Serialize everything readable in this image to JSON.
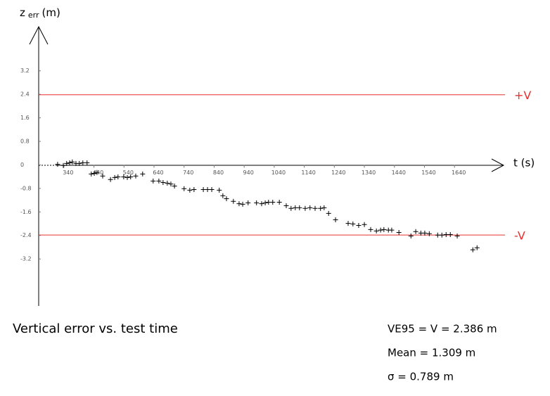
{
  "chart_data": {
    "type": "scatter",
    "marker": "+",
    "color": "#000000",
    "y_label": {
      "main": "z",
      "subscript": "err",
      "unit": "(m)"
    },
    "x_label": "t (s)",
    "xlim": [
      242,
      1787
    ],
    "ylim": [
      -4.8,
      4.7
    ],
    "xticks": [
      340,
      440,
      540,
      640,
      740,
      840,
      940,
      1040,
      1140,
      1240,
      1340,
      1440,
      1540,
      1640
    ],
    "yticks": [
      3.2,
      2.4,
      1.6,
      0.8,
      0,
      -0.8,
      -1.6,
      -2.4,
      -3.2
    ],
    "reference_lines": [
      {
        "value": 2.386,
        "label": "+V",
        "color": "#e8312f"
      },
      {
        "value": -2.386,
        "label": "-V",
        "color": "#e8312f"
      }
    ],
    "x": [
      305,
      324,
      335,
      345,
      354,
      366,
      377,
      389,
      403,
      417,
      427,
      436,
      455,
      481,
      495,
      506,
      525,
      537,
      548,
      565,
      588,
      623,
      642,
      656,
      670,
      682,
      694,
      726,
      745,
      759,
      790,
      804,
      818,
      843,
      855,
      867,
      890,
      909,
      921,
      939,
      967,
      984,
      996,
      1007,
      1021,
      1043,
      1066,
      1082,
      1096,
      1110,
      1129,
      1145,
      1162,
      1180,
      1192,
      1207,
      1230,
      1272,
      1288,
      1307,
      1326,
      1347,
      1366,
      1380,
      1391,
      1406,
      1417,
      1441,
      1481,
      1497,
      1514,
      1527,
      1542,
      1570,
      1584,
      1598,
      1612,
      1635,
      1687,
      1701
    ],
    "values": [
      0.02,
      -0.02,
      0.05,
      0.07,
      0.1,
      0.05,
      0.05,
      0.07,
      0.07,
      -0.31,
      -0.29,
      -0.26,
      -0.38,
      -0.5,
      -0.43,
      -0.41,
      -0.41,
      -0.43,
      -0.41,
      -0.38,
      -0.31,
      -0.55,
      -0.55,
      -0.6,
      -0.62,
      -0.65,
      -0.72,
      -0.81,
      -0.86,
      -0.84,
      -0.84,
      -0.84,
      -0.84,
      -0.86,
      -1.05,
      -1.15,
      -1.24,
      -1.32,
      -1.34,
      -1.29,
      -1.29,
      -1.32,
      -1.29,
      -1.27,
      -1.27,
      -1.27,
      -1.39,
      -1.48,
      -1.46,
      -1.46,
      -1.48,
      -1.46,
      -1.48,
      -1.48,
      -1.46,
      -1.65,
      -1.87,
      -1.99,
      -2.01,
      -2.06,
      -2.03,
      -2.2,
      -2.25,
      -2.22,
      -2.2,
      -2.22,
      -2.22,
      -2.3,
      -2.42,
      -2.27,
      -2.32,
      -2.32,
      -2.34,
      -2.39,
      -2.39,
      -2.37,
      -2.37,
      -2.42,
      -2.89,
      -2.82
    ],
    "caption": "Vertical error vs. test time",
    "stats": [
      "VE95 = V = 2.386 m",
      "Mean = 1.309 m",
      "σ = 0.789 m"
    ]
  }
}
